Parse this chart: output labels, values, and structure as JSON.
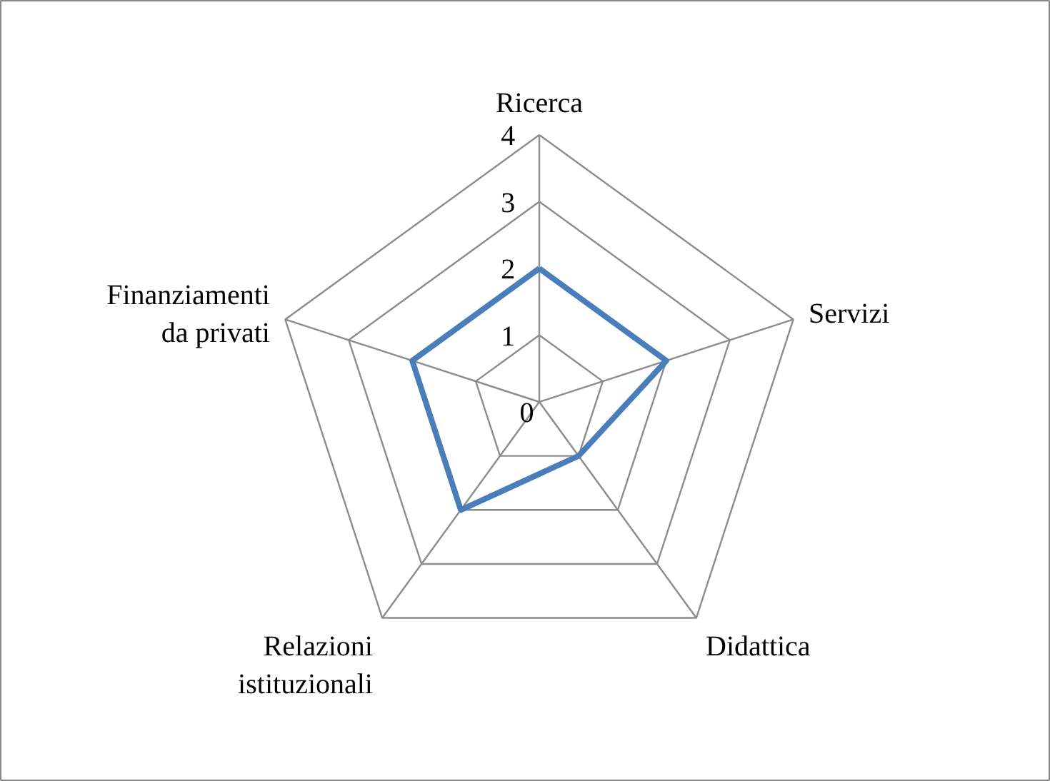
{
  "chart_data": {
    "type": "radar",
    "categories": [
      "Ricerca",
      "Servizi",
      "Didattica",
      "Relazioni istituzionali",
      "Finanziamenti da privati"
    ],
    "series": [
      {
        "color": "#4a7ebb",
        "values": [
          2,
          2,
          1,
          2,
          2
        ]
      }
    ],
    "ylim": [
      0,
      4
    ],
    "yticks": [
      0,
      1,
      2,
      3,
      4
    ],
    "grid": true,
    "line_style": "solid"
  }
}
